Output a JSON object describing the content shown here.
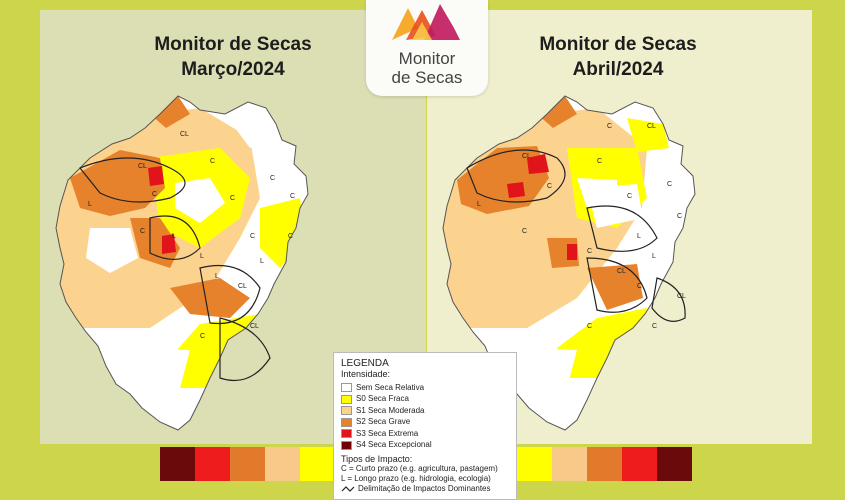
{
  "titles": {
    "left": [
      "Monitor de Secas",
      "Março/2024"
    ],
    "right": [
      "Monitor de Secas",
      "Abril/2024"
    ]
  },
  "logo": {
    "line1": "Monitor",
    "line2": "de Secas",
    "colors": [
      "#f5a623",
      "#e94e1b",
      "#c0185b"
    ]
  },
  "legend": {
    "title": "LEGENDA",
    "subtitle": "Intensidade:",
    "items": [
      {
        "label": "Sem Seca Relativa",
        "color": "#ffffff"
      },
      {
        "label": "S0 Seca Fraca",
        "color": "#ffff00"
      },
      {
        "label": "S1 Seca Moderada",
        "color": "#fcd38e"
      },
      {
        "label": "S2 Seca Grave",
        "color": "#e6822c"
      },
      {
        "label": "S3 Seca Extrema",
        "color": "#e0141a"
      },
      {
        "label": "S4 Seca Excepcional",
        "color": "#730000"
      }
    ],
    "impact_title": "Tipos de Impacto:",
    "impact_short": "C = Curto prazo (e.g. agricultura, pastagem)",
    "impact_long": "L = Longo prazo (e.g. hidrologia, ecologia)",
    "impact_line": "Delimitação de Impactos Dominantes"
  },
  "scale_left": [
    "#6b0a0a",
    "#ee1c1c",
    "#e27a2c",
    "#f9c98a",
    "#ffff00"
  ],
  "scale_right": [
    "#ffff00",
    "#f9c98a",
    "#e27a2c",
    "#ee1c1c",
    "#6b0a0a"
  ],
  "map_labels": {
    "march": [
      "CL",
      "L",
      "C",
      "CL",
      "C",
      "C",
      "C",
      "C",
      "L",
      "C",
      "L",
      "C",
      "L",
      "CL",
      "L",
      "C",
      "CL",
      "C"
    ],
    "april": [
      "CL",
      "C",
      "L",
      "C",
      "CL",
      "C",
      "C",
      "C",
      "C",
      "C",
      "L",
      "C",
      "CL",
      "L",
      "C",
      "CL",
      "C",
      "C"
    ]
  }
}
